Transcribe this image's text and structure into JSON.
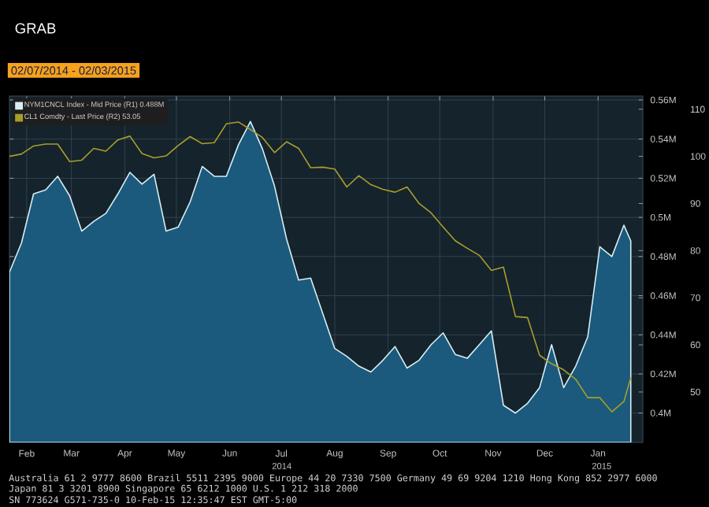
{
  "chart_data": {
    "type": "line",
    "title": "GRAB",
    "subtitle": "02/07/2014 - 02/03/2015",
    "x": [
      "2014-02-07",
      "2014-02-14",
      "2014-02-21",
      "2014-02-28",
      "2014-03-07",
      "2014-03-14",
      "2014-03-21",
      "2014-03-28",
      "2014-04-04",
      "2014-04-11",
      "2014-04-18",
      "2014-04-25",
      "2014-05-02",
      "2014-05-09",
      "2014-05-16",
      "2014-05-23",
      "2014-05-30",
      "2014-06-06",
      "2014-06-13",
      "2014-06-20",
      "2014-06-27",
      "2014-07-04",
      "2014-07-11",
      "2014-07-18",
      "2014-07-25",
      "2014-08-01",
      "2014-08-08",
      "2014-08-15",
      "2014-08-22",
      "2014-08-29",
      "2014-09-05",
      "2014-09-12",
      "2014-09-19",
      "2014-09-26",
      "2014-10-03",
      "2014-10-10",
      "2014-10-17",
      "2014-10-24",
      "2014-10-31",
      "2014-11-07",
      "2014-11-14",
      "2014-11-21",
      "2014-11-28",
      "2014-12-05",
      "2014-12-12",
      "2014-12-19",
      "2014-12-26",
      "2015-01-02",
      "2015-01-09",
      "2015-01-16",
      "2015-01-23",
      "2015-01-30",
      "2015-02-03"
    ],
    "series": [
      {
        "name": "NYM1CNCL Index - Mid Price (R1)   0.488M",
        "type": "area",
        "color": "#d8eef5",
        "values": [
          0.472,
          0.487,
          0.512,
          0.514,
          0.521,
          0.511,
          0.493,
          0.498,
          0.502,
          0.512,
          0.523,
          0.517,
          0.522,
          0.493,
          0.495,
          0.508,
          0.526,
          0.521,
          0.521,
          0.537,
          0.549,
          0.535,
          0.516,
          0.489,
          0.468,
          0.469,
          0.451,
          0.433,
          0.429,
          0.424,
          0.421,
          0.427,
          0.434,
          0.423,
          0.427,
          0.435,
          0.441,
          0.43,
          0.428,
          0.435,
          0.442,
          0.404,
          0.4,
          0.405,
          0.413,
          0.435,
          0.413,
          0.424,
          0.439,
          0.485,
          0.48,
          0.496,
          0.488
        ]
      },
      {
        "name": "CL1 Comdty - Last Price (R2)   53.05",
        "axis": "y2",
        "color": "#a89e2c",
        "values": [
          100.0,
          100.5,
          102.2,
          102.6,
          102.6,
          98.9,
          99.2,
          101.7,
          101.1,
          103.5,
          104.3,
          100.6,
          99.7,
          100.1,
          102.3,
          104.2,
          102.7,
          102.9,
          106.9,
          107.3,
          105.7,
          104.0,
          100.8,
          103.1,
          101.7,
          97.6,
          97.7,
          97.3,
          93.5,
          95.9,
          94.0,
          93.0,
          92.4,
          93.5,
          90.0,
          88.0,
          85.0,
          82.1,
          80.5,
          79.0,
          75.8,
          76.5,
          66.0,
          65.8,
          57.8,
          56.0,
          54.7,
          52.7,
          48.8,
          48.8,
          45.8,
          48.0,
          53.05
        ]
      }
    ],
    "xlim": [
      "2014-02-07",
      "2015-02-10"
    ],
    "xticks": [
      {
        "value": "2014-02-17",
        "label": "Feb"
      },
      {
        "value": "2014-03-15",
        "label": "Mar"
      },
      {
        "value": "2014-04-15",
        "label": "Apr"
      },
      {
        "value": "2014-05-15",
        "label": "May"
      },
      {
        "value": "2014-06-15",
        "label": "Jun"
      },
      {
        "value": "2014-07-15",
        "label": "Jul"
      },
      {
        "value": "2014-08-15",
        "label": "Aug"
      },
      {
        "value": "2014-09-15",
        "label": "Sep"
      },
      {
        "value": "2014-10-15",
        "label": "Oct"
      },
      {
        "value": "2014-11-15",
        "label": "Nov"
      },
      {
        "value": "2014-12-15",
        "label": "Dec"
      },
      {
        "value": "2015-01-15",
        "label": "Jan"
      }
    ],
    "ylim": [
      0.385,
      0.562
    ],
    "yticks": [
      {
        "value": 0.4,
        "label": "0.4M"
      },
      {
        "value": 0.42,
        "label": "0.42M"
      },
      {
        "value": 0.44,
        "label": "0.44M"
      },
      {
        "value": 0.46,
        "label": "0.46M"
      },
      {
        "value": 0.48,
        "label": "0.48M"
      },
      {
        "value": 0.5,
        "label": "0.5M"
      },
      {
        "value": 0.52,
        "label": "0.52M"
      },
      {
        "value": 0.54,
        "label": "0.54M"
      },
      {
        "value": 0.56,
        "label": "0.56M"
      }
    ],
    "y2lim": [
      39.3,
      112.8
    ],
    "y2ticks": [
      50,
      60,
      70,
      80,
      90,
      100,
      110
    ],
    "grid": true,
    "legend": "top left",
    "annotations": [
      "2014",
      "2015",
      "Australia 61 2 9777 8600 Brazil 5511 2395 9000 Europe 44 20 7330 7500 Germany 49 69 9204 1210 Hong Kong 852 2977 6000",
      "Japan 81 3 3201 8900     Singapore 65 6212 1000     U.S. 1 212 318 2000",
      "SN 773624 G571-735-0 10-Feb-15 12:35:47 EST  GMT-5:00"
    ]
  }
}
